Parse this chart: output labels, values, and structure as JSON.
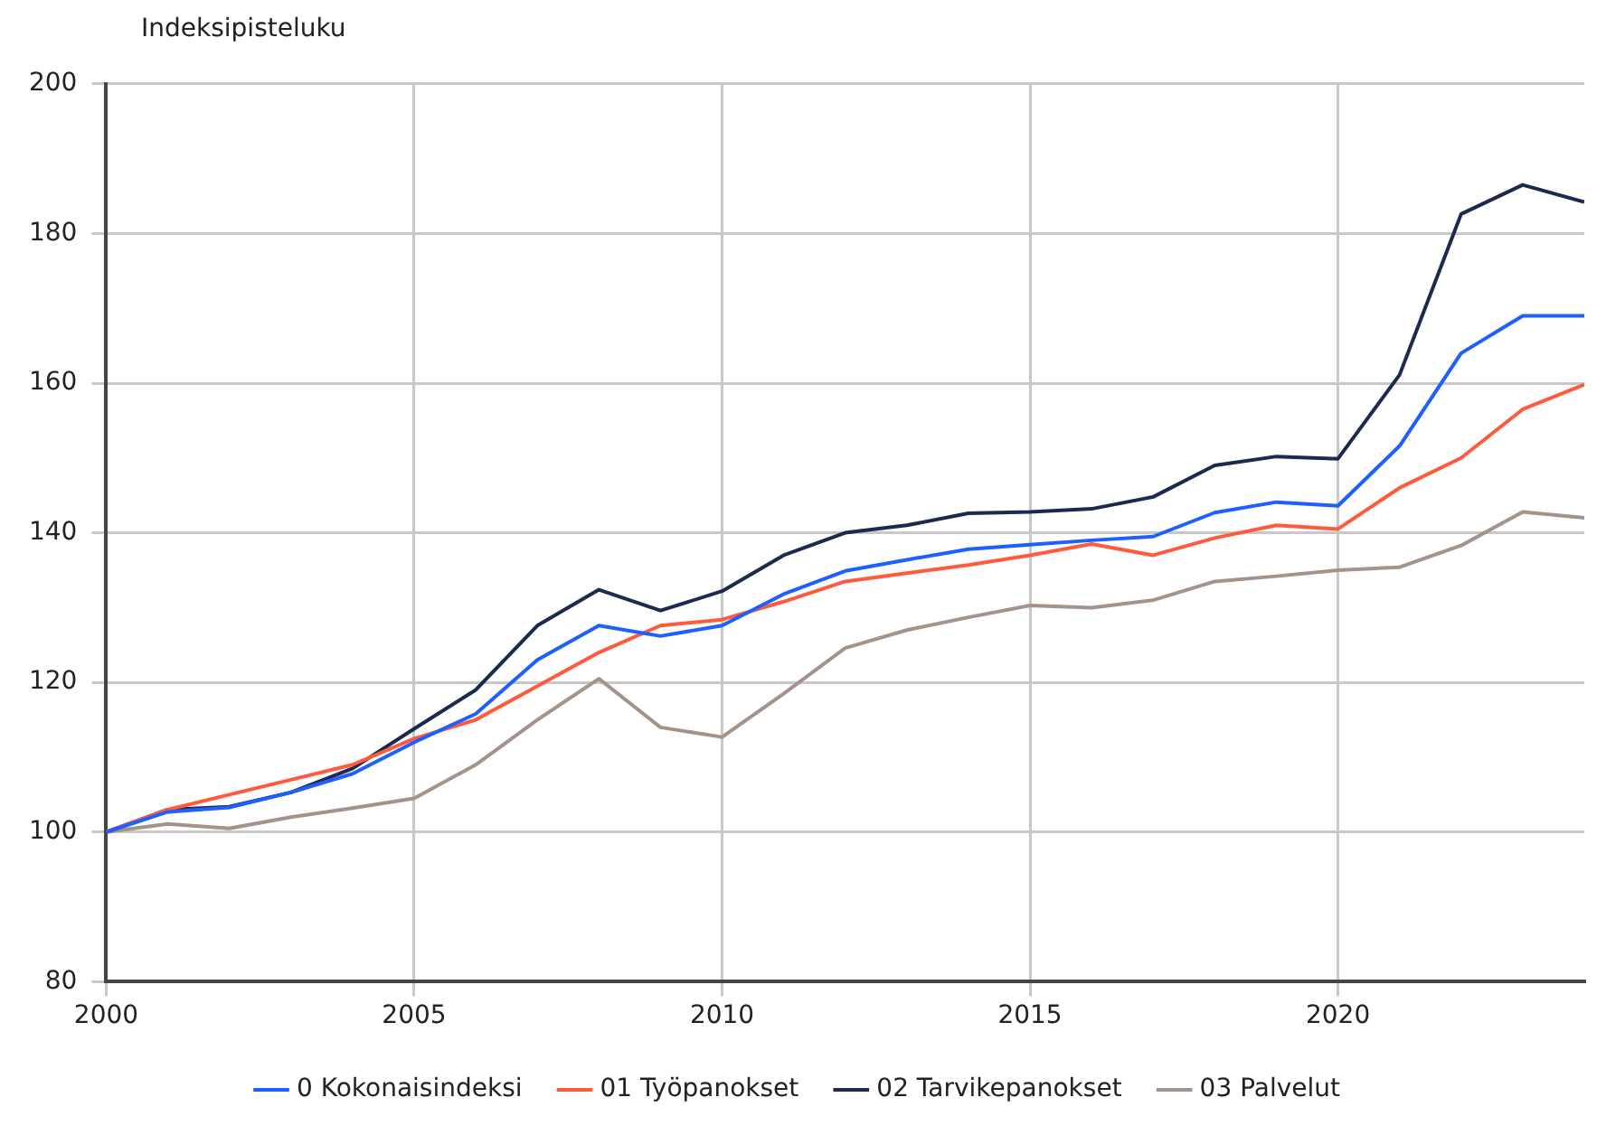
{
  "chart_data": {
    "type": "line",
    "ylabel": "Indeksipisteluku",
    "x": [
      2000,
      2001,
      2002,
      2003,
      2004,
      2005,
      2006,
      2007,
      2008,
      2009,
      2010,
      2011,
      2012,
      2013,
      2014,
      2015,
      2016,
      2017,
      2018,
      2019,
      2020,
      2021,
      2022,
      2023,
      2024
    ],
    "series": [
      {
        "name": "0 Kokonaisindeksi",
        "color": "#1f5fff",
        "values": [
          100,
          102.7,
          103.3,
          105.3,
          107.8,
          112,
          115.8,
          123,
          127.6,
          126.2,
          127.6,
          131.8,
          134.9,
          136.4,
          137.8,
          138.4,
          139,
          139.5,
          142.7,
          144.1,
          143.6,
          151.6,
          164,
          169,
          169
        ]
      },
      {
        "name": "01 Työpanokset",
        "color": "#ff5a3c",
        "values": [
          100,
          103,
          105,
          107,
          109,
          112.5,
          115,
          119.5,
          124,
          127.6,
          128.4,
          130.8,
          133.5,
          134.6,
          135.7,
          137,
          138.5,
          137,
          139.3,
          141,
          140.5,
          146,
          150,
          156.5,
          159.8
        ]
      },
      {
        "name": "02 Tarvikepanokset",
        "color": "#1b2a4e",
        "values": [
          100,
          103,
          103.4,
          105.3,
          108.5,
          113.8,
          119,
          127.6,
          132.4,
          129.6,
          132.2,
          137,
          140,
          141,
          142.6,
          142.8,
          143.2,
          144.8,
          149,
          150.2,
          149.9,
          161.1,
          182.6,
          186.5,
          184.2
        ]
      },
      {
        "name": "03 Palvelut",
        "color": "#a3938b",
        "values": [
          100,
          101.1,
          100.5,
          102,
          103.2,
          104.5,
          109,
          115,
          120.5,
          114,
          112.7,
          118.5,
          124.6,
          127,
          128.7,
          130.3,
          130,
          131,
          133.5,
          134.2,
          135,
          135.4,
          138.3,
          142.8,
          142
        ]
      }
    ],
    "xlim": [
      2000,
      2024
    ],
    "xticks": [
      2000,
      2005,
      2010,
      2015,
      2020
    ],
    "ylim": [
      80,
      200
    ],
    "yticks": [
      80,
      100,
      120,
      140,
      160,
      180,
      200
    ],
    "grid": true,
    "legend": "bottom",
    "marker": "none",
    "line_style": "solid"
  }
}
